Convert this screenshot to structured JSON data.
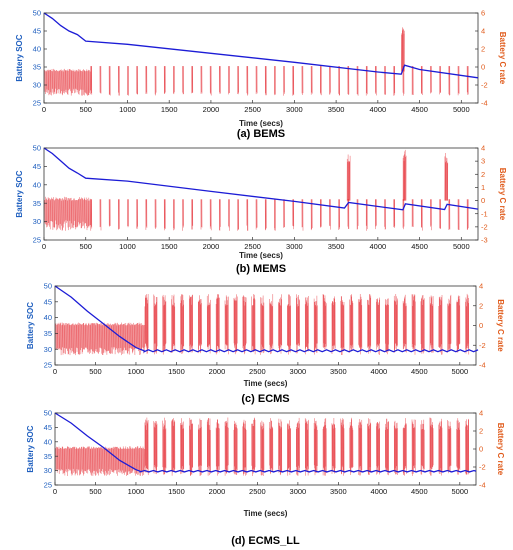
{
  "colors": {
    "soc": "#1c1cd6",
    "crate": "#e3242b",
    "left_axis": "#1f5fbf",
    "right_axis": "#e05a1a"
  },
  "chart_data": [
    {
      "type": "line",
      "caption": "(a) BEMS",
      "xlabel": "Time (secs)",
      "ylabel_left": "Battery SOC",
      "ylabel_right": "Battery C rate",
      "xlim": [
        0,
        5200
      ],
      "x_ticks": [
        0,
        500,
        1000,
        1500,
        2000,
        2500,
        3000,
        3500,
        4000,
        4500,
        5000
      ],
      "ylim_left": [
        25,
        50
      ],
      "y_ticks_left": [
        25,
        30,
        35,
        40,
        45,
        50
      ],
      "ylim_right": [
        -4,
        6
      ],
      "y_ticks_right": [
        -4,
        -2,
        0,
        2,
        4,
        6
      ],
      "series": [
        {
          "axis": "left",
          "x": [
            0,
            100,
            200,
            300,
            400,
            500,
            1000,
            2000,
            3000,
            4000,
            4280,
            4320,
            4500,
            5200
          ],
          "y": [
            50,
            48.5,
            46.5,
            45,
            44,
            42.2,
            41.3,
            38.8,
            36.3,
            33.6,
            33,
            35.5,
            34.3,
            32
          ]
        },
        {
          "axis": "right",
          "pattern": {
            "dense_until": 500,
            "period": 110,
            "baseline": -0.5,
            "min": -3.2,
            "pulse_max": 0.1,
            "spikes": [
              {
                "x": 4300,
                "max": 4.5
              }
            ]
          }
        }
      ]
    },
    {
      "type": "line",
      "caption": "(b) MEMS",
      "xlabel": "Time (secs)",
      "ylabel_left": "Battery SOC",
      "ylabel_right": "Battery C rate",
      "xlim": [
        0,
        5200
      ],
      "x_ticks": [
        0,
        500,
        1000,
        1500,
        2000,
        2500,
        3000,
        3500,
        4000,
        4500,
        5000
      ],
      "ylim_left": [
        25,
        50
      ],
      "y_ticks_left": [
        25,
        30,
        35,
        40,
        45,
        50
      ],
      "ylim_right": [
        -3,
        4
      ],
      "y_ticks_right": [
        -3,
        -2,
        -1,
        0,
        1,
        2,
        3,
        4
      ],
      "series": [
        {
          "axis": "left",
          "x": [
            0,
            100,
            200,
            300,
            400,
            500,
            1000,
            2000,
            3000,
            3600,
            3650,
            4300,
            4330,
            4800,
            4830,
            5200
          ],
          "y": [
            50,
            48.5,
            46.5,
            44.5,
            43.2,
            41.8,
            41,
            38.2,
            35.5,
            33.7,
            35.2,
            33.2,
            34.8,
            33.3,
            34.7,
            33.4
          ]
        },
        {
          "axis": "right",
          "pattern": {
            "dense_until": 550,
            "period": 110,
            "baseline": 0,
            "min": -2.3,
            "pulse_max": 0.1,
            "spikes": [
              {
                "x": 3650,
                "max": 3.8
              },
              {
                "x": 4320,
                "max": 3.9
              },
              {
                "x": 4820,
                "max": 3.7
              }
            ]
          }
        }
      ]
    },
    {
      "type": "line",
      "caption": "(c) ECMS",
      "xlabel": "Time (secs)",
      "ylabel_left": "Battery SOC",
      "ylabel_right": "Battery C rate",
      "xlim": [
        0,
        5200
      ],
      "x_ticks": [
        0,
        500,
        1000,
        1500,
        2000,
        2500,
        3000,
        3500,
        4000,
        4500,
        5000
      ],
      "ylim_left": [
        25,
        50
      ],
      "y_ticks_left": [
        25,
        30,
        35,
        40,
        45,
        50
      ],
      "ylim_right": [
        -4,
        4
      ],
      "y_ticks_right": [
        -4,
        -2,
        0,
        2,
        4
      ],
      "series": [
        {
          "axis": "left",
          "x": [
            0,
            200,
            400,
            600,
            800,
            1000,
            1100,
            5200
          ],
          "y": [
            50,
            46.5,
            42,
            38,
            34,
            30.5,
            29.5,
            29.5
          ],
          "ripple_from": 1100,
          "ripple": 0.6
        },
        {
          "axis": "right",
          "pattern": {
            "dense_until": 1100,
            "period": 110,
            "baseline": 0,
            "min": -3,
            "pulse_max": 3.2,
            "pulse_from": 1100,
            "spikes": []
          }
        }
      ]
    },
    {
      "type": "line",
      "caption": "(d) ECMS_LL",
      "xlabel": "Time (secs)",
      "ylabel_left": "Battery SOC",
      "ylabel_right": "Battery C rate",
      "xlim": [
        0,
        5200
      ],
      "x_ticks": [
        0,
        500,
        1000,
        1500,
        2000,
        2500,
        3000,
        3500,
        4000,
        4500,
        5000
      ],
      "ylim_left": [
        25,
        50
      ],
      "y_ticks_left": [
        25,
        30,
        35,
        40,
        45,
        50
      ],
      "ylim_right": [
        -4,
        4
      ],
      "y_ticks_right": [
        -4,
        -2,
        0,
        2,
        4
      ],
      "series": [
        {
          "axis": "left",
          "x": [
            0,
            200,
            400,
            600,
            800,
            1000,
            1050,
            5200
          ],
          "y": [
            50,
            46.5,
            42,
            38,
            33.5,
            30.3,
            29.8,
            29.8
          ],
          "ripple_from": 1050,
          "ripple": 0.5
        },
        {
          "axis": "right",
          "pattern": {
            "dense_until": 1050,
            "period": 110,
            "baseline": 0,
            "min": -3,
            "pulse_max": 3.5,
            "pulse_from": 1050,
            "spikes": []
          }
        }
      ]
    }
  ]
}
